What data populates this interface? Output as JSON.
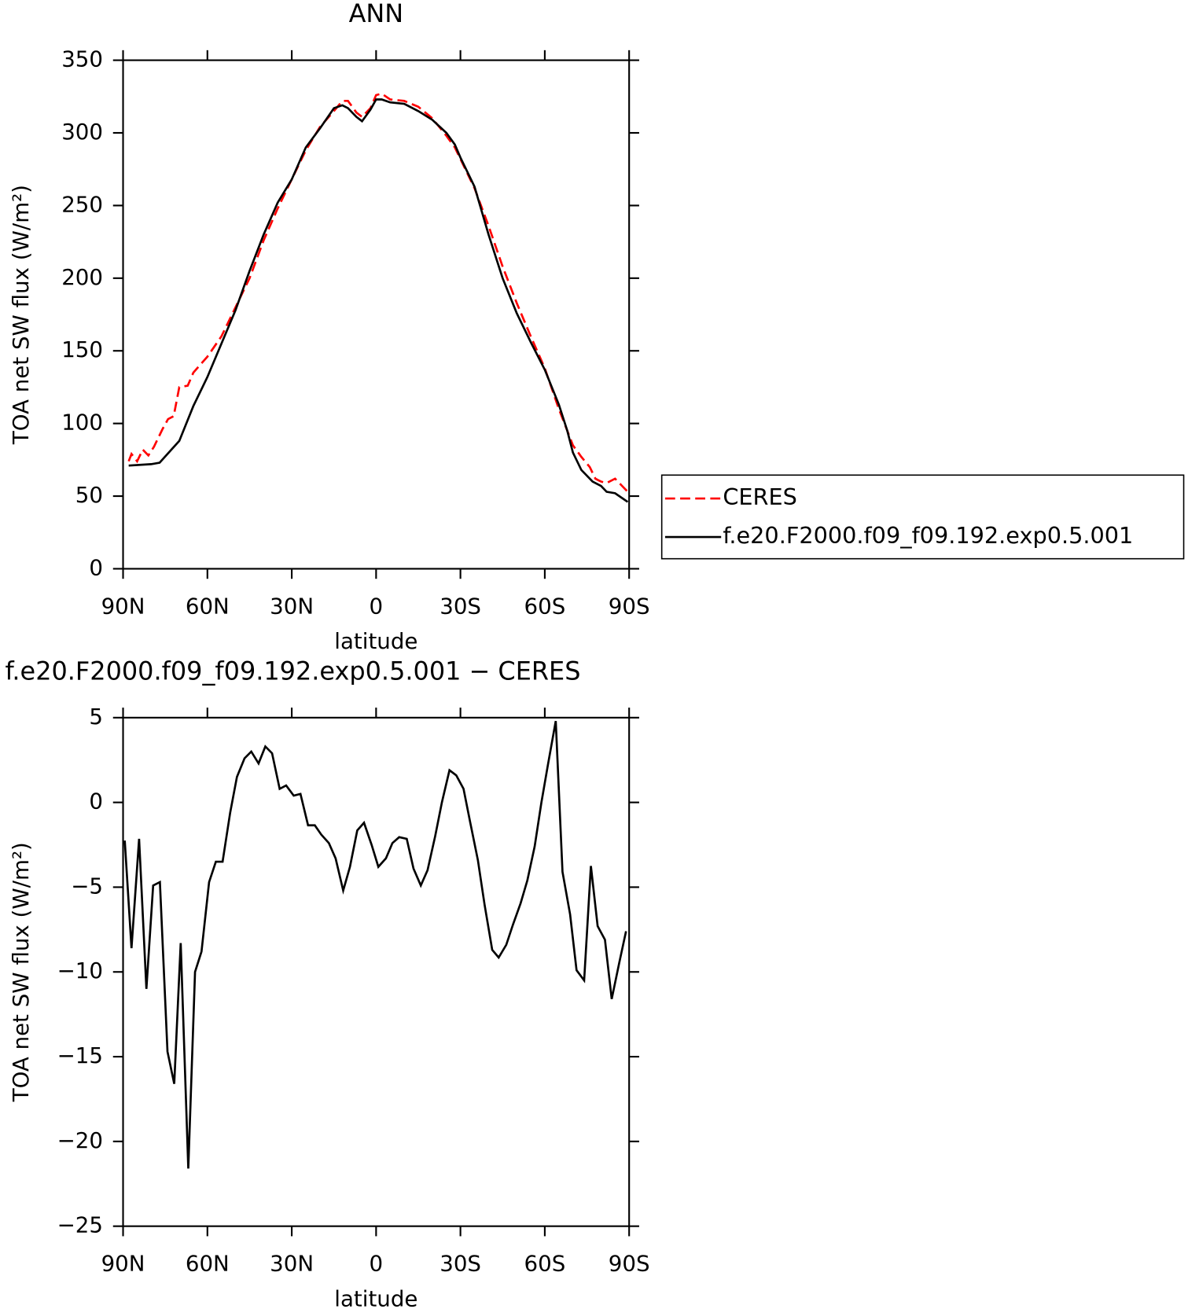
{
  "chart_data": [
    {
      "type": "line",
      "title": "ANN",
      "ylabel": "TOA net SW flux (W/m²)",
      "xlabel": "latitude",
      "xlim": [
        90,
        -90
      ],
      "xticks": [
        {
          "value": 90,
          "label": "90N"
        },
        {
          "value": 60,
          "label": "60N"
        },
        {
          "value": 30,
          "label": "30N"
        },
        0,
        {
          "value": -30,
          "label": "30S"
        },
        {
          "value": -60,
          "label": "60S"
        },
        {
          "value": -90,
          "label": "90S"
        }
      ],
      "ylim": [
        0,
        350
      ],
      "yticks": [
        0,
        50,
        100,
        150,
        200,
        250,
        300,
        350
      ],
      "legend": "right",
      "series": [
        {
          "name": "CERES",
          "color": "#ff0000",
          "dash": true,
          "x": [
            88,
            87,
            85,
            83,
            81,
            79,
            76,
            74,
            72,
            70,
            67,
            65,
            60,
            55,
            50,
            45,
            40,
            35,
            30,
            25,
            20,
            15,
            12,
            10,
            7,
            5,
            2,
            0,
            -2,
            -5,
            -10,
            -15,
            -20,
            -25,
            -28,
            -30,
            -35,
            -40,
            -45,
            -50,
            -55,
            -60,
            -65,
            -68,
            -70,
            -73,
            -76,
            -78,
            -80,
            -82,
            -85,
            -87,
            -89.5
          ],
          "values": [
            74,
            79,
            74,
            82,
            78,
            84,
            96,
            103,
            105,
            125,
            126,
            135,
            146,
            160,
            180,
            200,
            226,
            248,
            268,
            288,
            304,
            315,
            322,
            322,
            314,
            311,
            317,
            326,
            327,
            323,
            322,
            318,
            310,
            298,
            290,
            282,
            262,
            236,
            208,
            183,
            160,
            138,
            110,
            95,
            85,
            77,
            70,
            62,
            60,
            59,
            62,
            58,
            53
          ]
        },
        {
          "name": "f.e20.F2000.f09_f09.192.exp0.5.001",
          "color": "#000000",
          "dash": false,
          "x": [
            88,
            80,
            77,
            70,
            65,
            60,
            55,
            50,
            45,
            40,
            35,
            30,
            25,
            20,
            15,
            12,
            10,
            7,
            5,
            2,
            0,
            -2,
            -5,
            -10,
            -15,
            -20,
            -25,
            -28,
            -30,
            -35,
            -40,
            -45,
            -50,
            -55,
            -60,
            -65,
            -68,
            -70,
            -73,
            -77,
            -80,
            -82,
            -85,
            -88,
            -89.5
          ],
          "values": [
            71,
            72,
            73,
            88,
            112,
            132,
            155,
            178,
            205,
            230,
            252,
            268,
            290,
            303,
            317,
            319,
            317,
            311,
            308,
            316,
            323,
            323,
            321,
            320,
            315,
            309,
            300,
            292,
            283,
            263,
            230,
            200,
            176,
            156,
            137,
            113,
            95,
            80,
            68,
            60,
            57,
            53,
            52,
            48,
            46
          ]
        }
      ]
    },
    {
      "type": "line",
      "title": "f.e20.F2000.f09_f09.192.exp0.5.001 − CERES",
      "ylabel": "TOA net SW flux (W/m²)",
      "xlabel": "latitude",
      "xlim": [
        90,
        -90
      ],
      "xticks": [
        {
          "value": 90,
          "label": "90N"
        },
        {
          "value": 60,
          "label": "60N"
        },
        {
          "value": 30,
          "label": "30N"
        },
        0,
        {
          "value": -30,
          "label": "30S"
        },
        {
          "value": -60,
          "label": "60S"
        },
        {
          "value": -90,
          "label": "90S"
        }
      ],
      "ylim": [
        -25,
        5
      ],
      "yticks": [
        {
          "value": -25,
          "label": "−25"
        },
        {
          "value": -20,
          "label": "−20"
        },
        {
          "value": -15,
          "label": "−15"
        },
        {
          "value": -10,
          "label": "−10"
        },
        {
          "value": -5,
          "label": "−5"
        },
        0,
        5
      ],
      "series": [
        {
          "color": "#000000",
          "dash": false,
          "x": [
            89.4,
            87,
            84.3,
            81.7,
            79.3,
            76.9,
            74.2,
            71.8,
            69.5,
            66.8,
            64.4,
            62.1,
            59.4,
            57,
            54.6,
            51.9,
            49.5,
            46.8,
            44.4,
            41.8,
            39.4,
            37,
            34.3,
            32,
            29.3,
            26.9,
            24.2,
            21.8,
            19.5,
            16.8,
            14.4,
            11.7,
            9.3,
            6.7,
            4.3,
            1.6,
            -0.8,
            -3.5,
            -5.8,
            -8.2,
            -10.9,
            -13.3,
            -15.9,
            -18.3,
            -21,
            -23.4,
            -26.1,
            -28.5,
            -31.1,
            -33.5,
            -36.2,
            -38.6,
            -41.3,
            -43.6,
            -46.3,
            -48.7,
            -51.4,
            -53.8,
            -56.4,
            -58.8,
            -61.2,
            -63.9,
            -66.3,
            -69,
            -71.3,
            -74,
            -76.4,
            -78.8,
            -81.4,
            -83.8,
            -86.5,
            -88.9
          ],
          "values": [
            -2.25,
            -8.6,
            -2.15,
            -11,
            -4.9,
            -4.7,
            -14.7,
            -16.6,
            -8.3,
            -21.6,
            -10,
            -8.8,
            -4.7,
            -3.5,
            -3.5,
            -0.6,
            1.5,
            2.6,
            3,
            2.3,
            3.3,
            2.9,
            0.8,
            1,
            0.4,
            0.5,
            -1.35,
            -1.35,
            -1.9,
            -2.4,
            -3.3,
            -5.2,
            -3.8,
            -1.65,
            -1.2,
            -2.5,
            -3.8,
            -3.3,
            -2.4,
            -2.05,
            -2.15,
            -3.9,
            -4.9,
            -4,
            -2,
            0,
            1.9,
            1.6,
            0.8,
            -1.2,
            -3.4,
            -6.05,
            -8.7,
            -9.15,
            -8.4,
            -7.2,
            -5.95,
            -4.6,
            -2.6,
            0,
            2.3,
            4.8,
            -4.1,
            -6.6,
            -9.9,
            -10.5,
            -3.75,
            -7.3,
            -8.1,
            -11.6,
            -9.45,
            -7.6
          ]
        }
      ]
    }
  ]
}
